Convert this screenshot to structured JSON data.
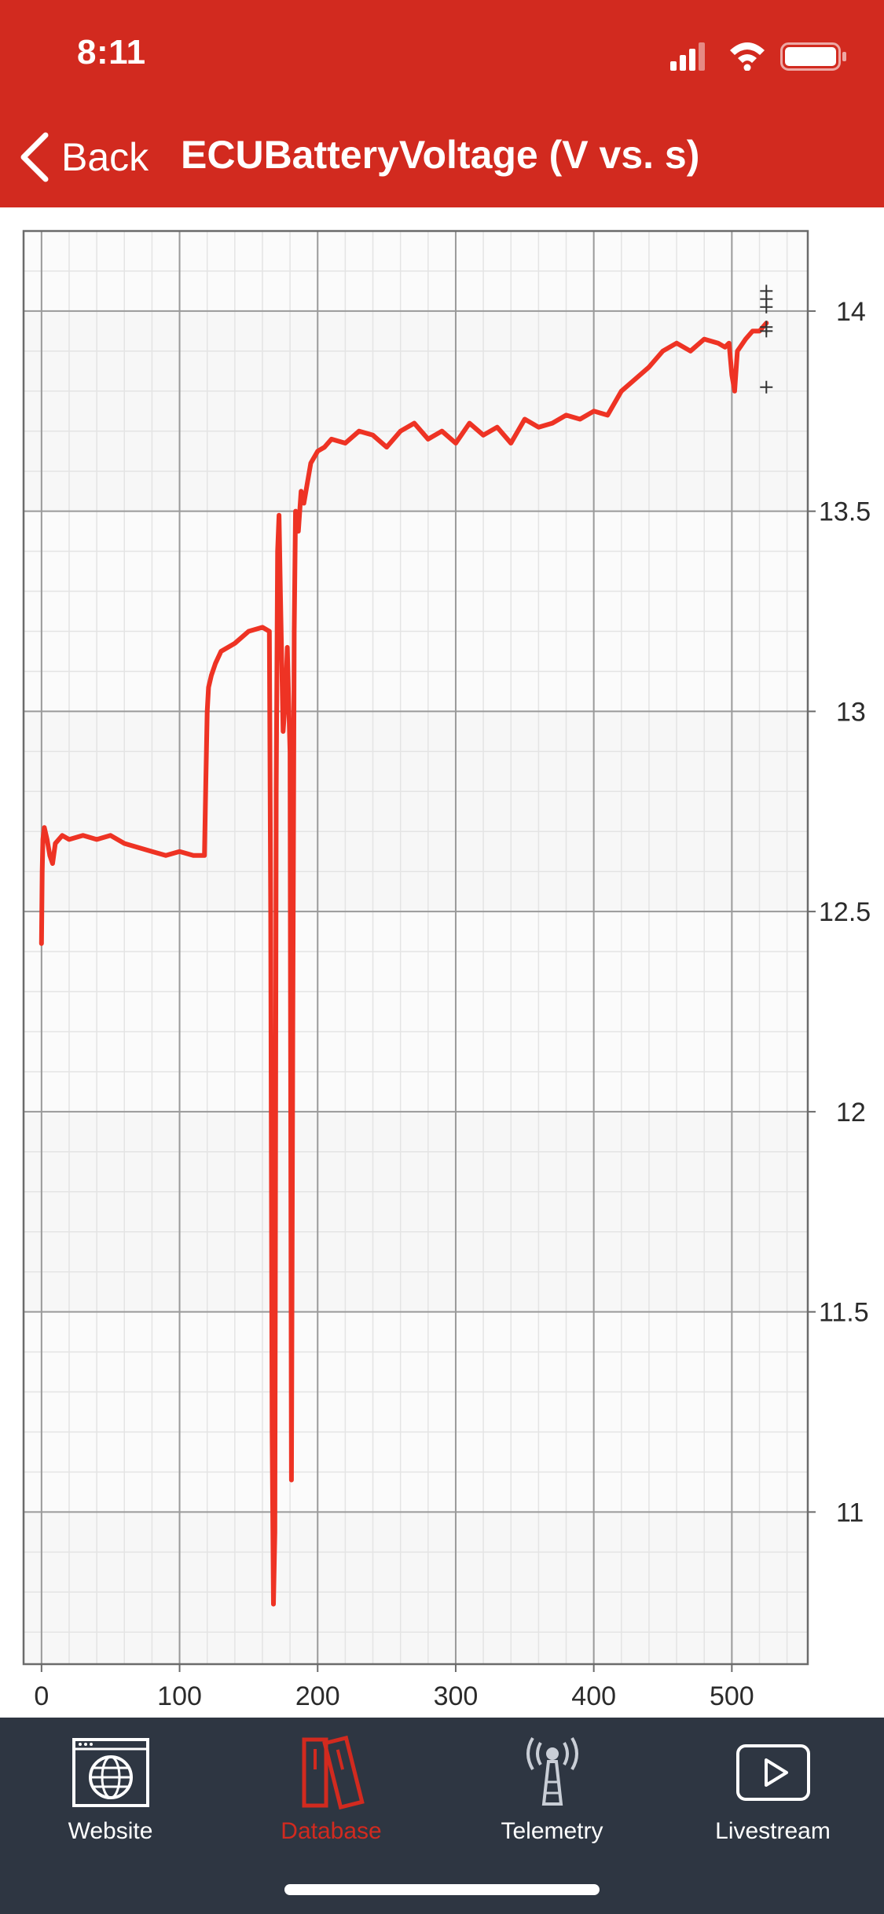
{
  "status_bar": {
    "time": "8:11",
    "icons": [
      "cellular-signal-icon",
      "wifi-icon",
      "battery-icon"
    ]
  },
  "nav": {
    "back_label": "Back",
    "title": "ECUBatteryVoltage (V vs. s)"
  },
  "chart_data": {
    "type": "line",
    "title": "ECUBatteryVoltage (V vs. s)",
    "xlabel": "",
    "ylabel": "",
    "xlim": [
      -13,
      555
    ],
    "ylim": [
      10.62,
      14.2
    ],
    "x_ticks": [
      0,
      100,
      200,
      300,
      400,
      500
    ],
    "y_ticks": [
      11,
      11.5,
      12,
      12.5,
      13,
      13.5,
      14
    ],
    "y_axis_side": "right",
    "grid": true,
    "line_color": "#ee3324",
    "series": [
      {
        "x": [
          0,
          0.5,
          1,
          2,
          4,
          6,
          8,
          10,
          15,
          20,
          30,
          40,
          50,
          60,
          70,
          80,
          90,
          100,
          110,
          118,
          119,
          120,
          121,
          123,
          126,
          130,
          140,
          150,
          160,
          165,
          166,
          167,
          168,
          169,
          170,
          171,
          172,
          173,
          175,
          177,
          178,
          180,
          181,
          182,
          183,
          184,
          186,
          188,
          190,
          195,
          200,
          205,
          210,
          220,
          230,
          240,
          250,
          260,
          270,
          280,
          290,
          300,
          310,
          320,
          330,
          340,
          350,
          360,
          370,
          380,
          390,
          400,
          410,
          420,
          430,
          440,
          450,
          460,
          470,
          480,
          490,
          495,
          498,
          500,
          502,
          504,
          506,
          510,
          515,
          520,
          525
        ],
        "y": [
          12.42,
          12.6,
          12.68,
          12.71,
          12.68,
          12.64,
          12.62,
          12.67,
          12.69,
          12.68,
          12.69,
          12.68,
          12.69,
          12.67,
          12.66,
          12.65,
          12.64,
          12.65,
          12.64,
          12.64,
          12.82,
          13.0,
          13.06,
          13.09,
          13.12,
          13.15,
          13.17,
          13.2,
          13.21,
          13.2,
          12.5,
          11.2,
          10.77,
          10.95,
          12.8,
          13.4,
          13.49,
          13.3,
          12.95,
          13.05,
          13.16,
          12.9,
          11.08,
          12.2,
          13.2,
          13.5,
          13.45,
          13.55,
          13.52,
          13.62,
          13.65,
          13.66,
          13.68,
          13.67,
          13.7,
          13.69,
          13.66,
          13.7,
          13.72,
          13.68,
          13.7,
          13.67,
          13.72,
          13.69,
          13.71,
          13.67,
          13.73,
          13.71,
          13.72,
          13.74,
          13.73,
          13.75,
          13.74,
          13.8,
          13.83,
          13.86,
          13.9,
          13.92,
          13.9,
          13.93,
          13.92,
          13.91,
          13.92,
          13.84,
          13.8,
          13.9,
          13.91,
          13.93,
          13.95,
          13.95,
          13.97
        ]
      }
    ],
    "outlier_markers": [
      {
        "x": 525,
        "y": 14.05
      },
      {
        "x": 525,
        "y": 14.03
      },
      {
        "x": 525,
        "y": 14.01
      },
      {
        "x": 525,
        "y": 13.96
      },
      {
        "x": 525,
        "y": 13.95
      },
      {
        "x": 525,
        "y": 13.81
      }
    ]
  },
  "tabbar": {
    "items": [
      {
        "label": "Website",
        "icon": "globe-icon",
        "active": false
      },
      {
        "label": "Database",
        "icon": "database-binders-icon",
        "active": true
      },
      {
        "label": "Telemetry",
        "icon": "antenna-icon",
        "active": false
      },
      {
        "label": "Livestream",
        "icon": "play-icon",
        "active": false
      }
    ],
    "active_color": "#d22a1f"
  },
  "colors": {
    "header": "#d22a1f",
    "tabbar": "#2e3642"
  }
}
